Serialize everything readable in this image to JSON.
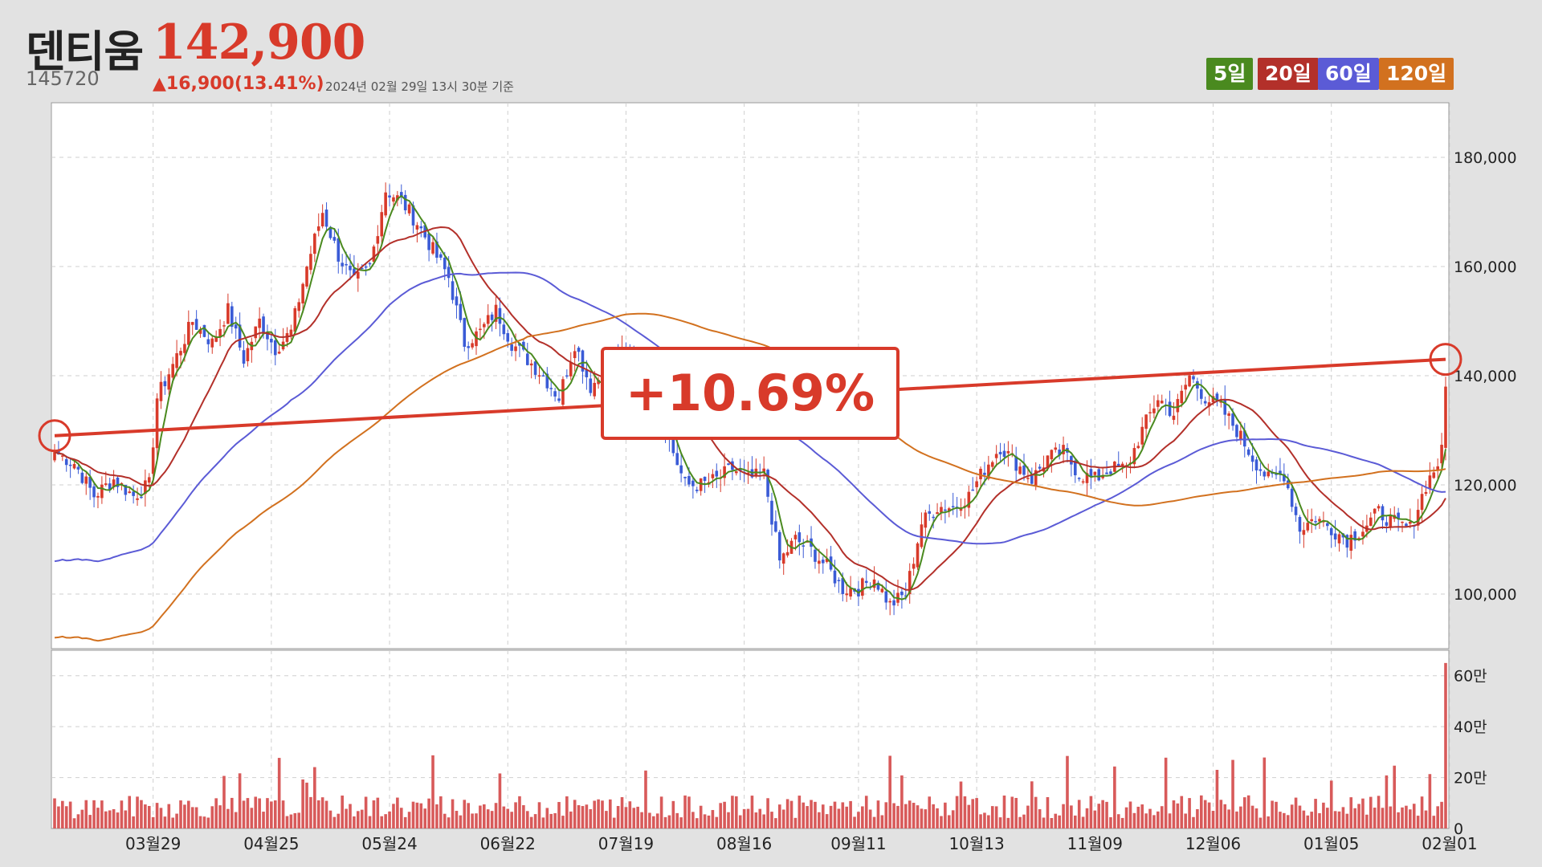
{
  "header": {
    "stock_name": "덴티움",
    "price": "142,900",
    "code": "145720",
    "change": "▲16,900(13.41%)",
    "as_of": "2024년 02월 29일 13시 30분 기준"
  },
  "legend": [
    {
      "label": "5일",
      "color": "#4a8a1f"
    },
    {
      "label": "20일",
      "color": "#b3302a"
    },
    {
      "label": "60일",
      "color": "#5b5bd6"
    },
    {
      "label": "120일",
      "color": "#d2711f"
    }
  ],
  "annotation": {
    "text": "+10.69%",
    "color": "#d83a2a"
  },
  "chart_data": {
    "type": "candlestick",
    "price_axis": {
      "min": 90000,
      "max": 190000,
      "ticks": [
        100000,
        120000,
        140000,
        160000,
        180000
      ],
      "tick_labels": [
        "100,000",
        "120,000",
        "140,000",
        "160,000",
        "180,000"
      ]
    },
    "volume_axis": {
      "min": 0,
      "max": 700000,
      "ticks": [
        0,
        200000,
        400000,
        600000
      ],
      "tick_labels": [
        "0",
        "20만",
        "40만",
        "60만"
      ]
    },
    "x_labels": [
      "03월29",
      "04월25",
      "05월24",
      "06월22",
      "07월19",
      "08월16",
      "09월11",
      "10월13",
      "11월09",
      "12월06",
      "01월05",
      "02월01"
    ],
    "close_anchors": [
      [
        0,
        126000
      ],
      [
        5,
        124000
      ],
      [
        10,
        118000
      ],
      [
        15,
        121000
      ],
      [
        20,
        118000
      ],
      [
        24,
        120000
      ],
      [
        26,
        136000
      ],
      [
        30,
        142000
      ],
      [
        35,
        150000
      ],
      [
        40,
        146000
      ],
      [
        44,
        152000
      ],
      [
        48,
        143000
      ],
      [
        52,
        150000
      ],
      [
        56,
        145000
      ],
      [
        60,
        148000
      ],
      [
        64,
        160000
      ],
      [
        68,
        170000
      ],
      [
        72,
        162000
      ],
      [
        76,
        157000
      ],
      [
        80,
        160000
      ],
      [
        84,
        174000
      ],
      [
        88,
        172000
      ],
      [
        92,
        168000
      ],
      [
        96,
        163000
      ],
      [
        100,
        158000
      ],
      [
        104,
        146000
      ],
      [
        108,
        148000
      ],
      [
        112,
        152000
      ],
      [
        116,
        146000
      ],
      [
        120,
        143000
      ],
      [
        124,
        140000
      ],
      [
        128,
        136000
      ],
      [
        132,
        146000
      ],
      [
        136,
        138000
      ],
      [
        140,
        141000
      ],
      [
        144,
        144000
      ],
      [
        148,
        143000
      ],
      [
        152,
        138000
      ],
      [
        156,
        128000
      ],
      [
        160,
        120000
      ],
      [
        164,
        120000
      ],
      [
        168,
        121000
      ],
      [
        172,
        123000
      ],
      [
        176,
        121000
      ],
      [
        180,
        122000
      ],
      [
        184,
        106000
      ],
      [
        188,
        110000
      ],
      [
        192,
        108000
      ],
      [
        196,
        105000
      ],
      [
        200,
        101000
      ],
      [
        204,
        101000
      ],
      [
        208,
        103000
      ],
      [
        212,
        98000
      ],
      [
        216,
        100000
      ],
      [
        220,
        113000
      ],
      [
        224,
        116000
      ],
      [
        228,
        116000
      ],
      [
        232,
        118000
      ],
      [
        236,
        123000
      ],
      [
        240,
        127000
      ],
      [
        244,
        124000
      ],
      [
        248,
        121000
      ],
      [
        252,
        125000
      ],
      [
        256,
        126000
      ],
      [
        260,
        122000
      ],
      [
        264,
        121000
      ],
      [
        268,
        123000
      ],
      [
        272,
        123000
      ],
      [
        276,
        130000
      ],
      [
        280,
        136000
      ],
      [
        284,
        133000
      ],
      [
        288,
        140000
      ],
      [
        292,
        136000
      ],
      [
        296,
        134000
      ],
      [
        300,
        130000
      ],
      [
        304,
        125000
      ],
      [
        308,
        121000
      ],
      [
        312,
        122000
      ],
      [
        316,
        112000
      ],
      [
        320,
        114000
      ],
      [
        324,
        112000
      ],
      [
        328,
        110000
      ],
      [
        332,
        112000
      ],
      [
        336,
        115000
      ],
      [
        340,
        113000
      ],
      [
        344,
        112000
      ],
      [
        348,
        120000
      ],
      [
        351,
        124000
      ],
      [
        352,
        126000
      ],
      [
        353,
        138000
      ]
    ],
    "ma_series": [
      {
        "name": "5일",
        "period": 5
      },
      {
        "name": "20일",
        "period": 20
      },
      {
        "name": "60일",
        "period": 60
      },
      {
        "name": "120일",
        "period": 120
      }
    ],
    "trend_line": {
      "start": {
        "index": 0,
        "value": 129000
      },
      "end": {
        "index": 353,
        "value": 143000
      },
      "change": "+10.69%"
    },
    "last_volume": 650000
  }
}
